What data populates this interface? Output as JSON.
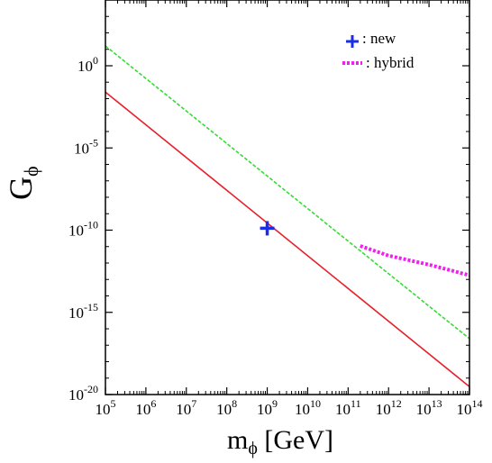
{
  "chart_data": {
    "type": "line",
    "xlabel": {
      "main": "m",
      "sub": "ϕ",
      "unit": " [GeV]"
    },
    "ylabel": {
      "main": "G",
      "sub": "ϕ"
    },
    "x_scale": "log",
    "y_scale": "log",
    "xlim": [
      100000.0,
      100000000000000.0
    ],
    "ylim": [
      1e-20,
      10000.0
    ],
    "x_ticks": [
      {
        "base": "10",
        "exp": "5",
        "value": 100000.0
      },
      {
        "base": "10",
        "exp": "6",
        "value": 1000000.0
      },
      {
        "base": "10",
        "exp": "7",
        "value": 10000000.0
      },
      {
        "base": "10",
        "exp": "8",
        "value": 100000000.0
      },
      {
        "base": "10",
        "exp": "9",
        "value": 1000000000.0
      },
      {
        "base": "10",
        "exp": "10",
        "value": 10000000000.0
      },
      {
        "base": "10",
        "exp": "11",
        "value": 100000000000.0
      },
      {
        "base": "10",
        "exp": "12",
        "value": 1000000000000.0
      },
      {
        "base": "10",
        "exp": "13",
        "value": 10000000000000.0
      },
      {
        "base": "10",
        "exp": "14",
        "value": 100000000000000.0
      }
    ],
    "y_ticks": [
      {
        "base": "10",
        "exp": "0",
        "value": 1
      },
      {
        "base": "10",
        "exp": "-5",
        "value": 1e-05
      },
      {
        "base": "10",
        "exp": "-10",
        "value": 1e-10
      },
      {
        "base": "10",
        "exp": "-15",
        "value": 1e-15
      },
      {
        "base": "10",
        "exp": "-20",
        "value": 1e-20
      }
    ],
    "grid": false,
    "legend_position": "top-right",
    "series": [
      {
        "key": "red-solid",
        "style": "solid",
        "color": "#e8202a",
        "x": [
          100000.0,
          100000000000000.0
        ],
        "y": [
          0.025,
          3e-20
        ]
      },
      {
        "key": "green-dashed",
        "style": "dashed",
        "color": "#33dd33",
        "x": [
          100000.0,
          100000000000000.0
        ],
        "y": [
          16.0,
          2.5e-17
        ]
      },
      {
        "key": "hybrid",
        "name": ": hybrid",
        "style": "dotted-thick",
        "color": "#ee22ee",
        "x": [
          200000000000.0,
          1000000000000.0,
          10000000000000.0,
          100000000000000.0
        ],
        "y": [
          1.1e-11,
          2.8e-12,
          8e-13,
          1.8e-13
        ]
      }
    ],
    "points": [
      {
        "key": "new",
        "name": ": new",
        "marker": "plus",
        "color": "#1a2ee8",
        "x": 1000000000.0,
        "y": 1.3e-10
      }
    ]
  }
}
